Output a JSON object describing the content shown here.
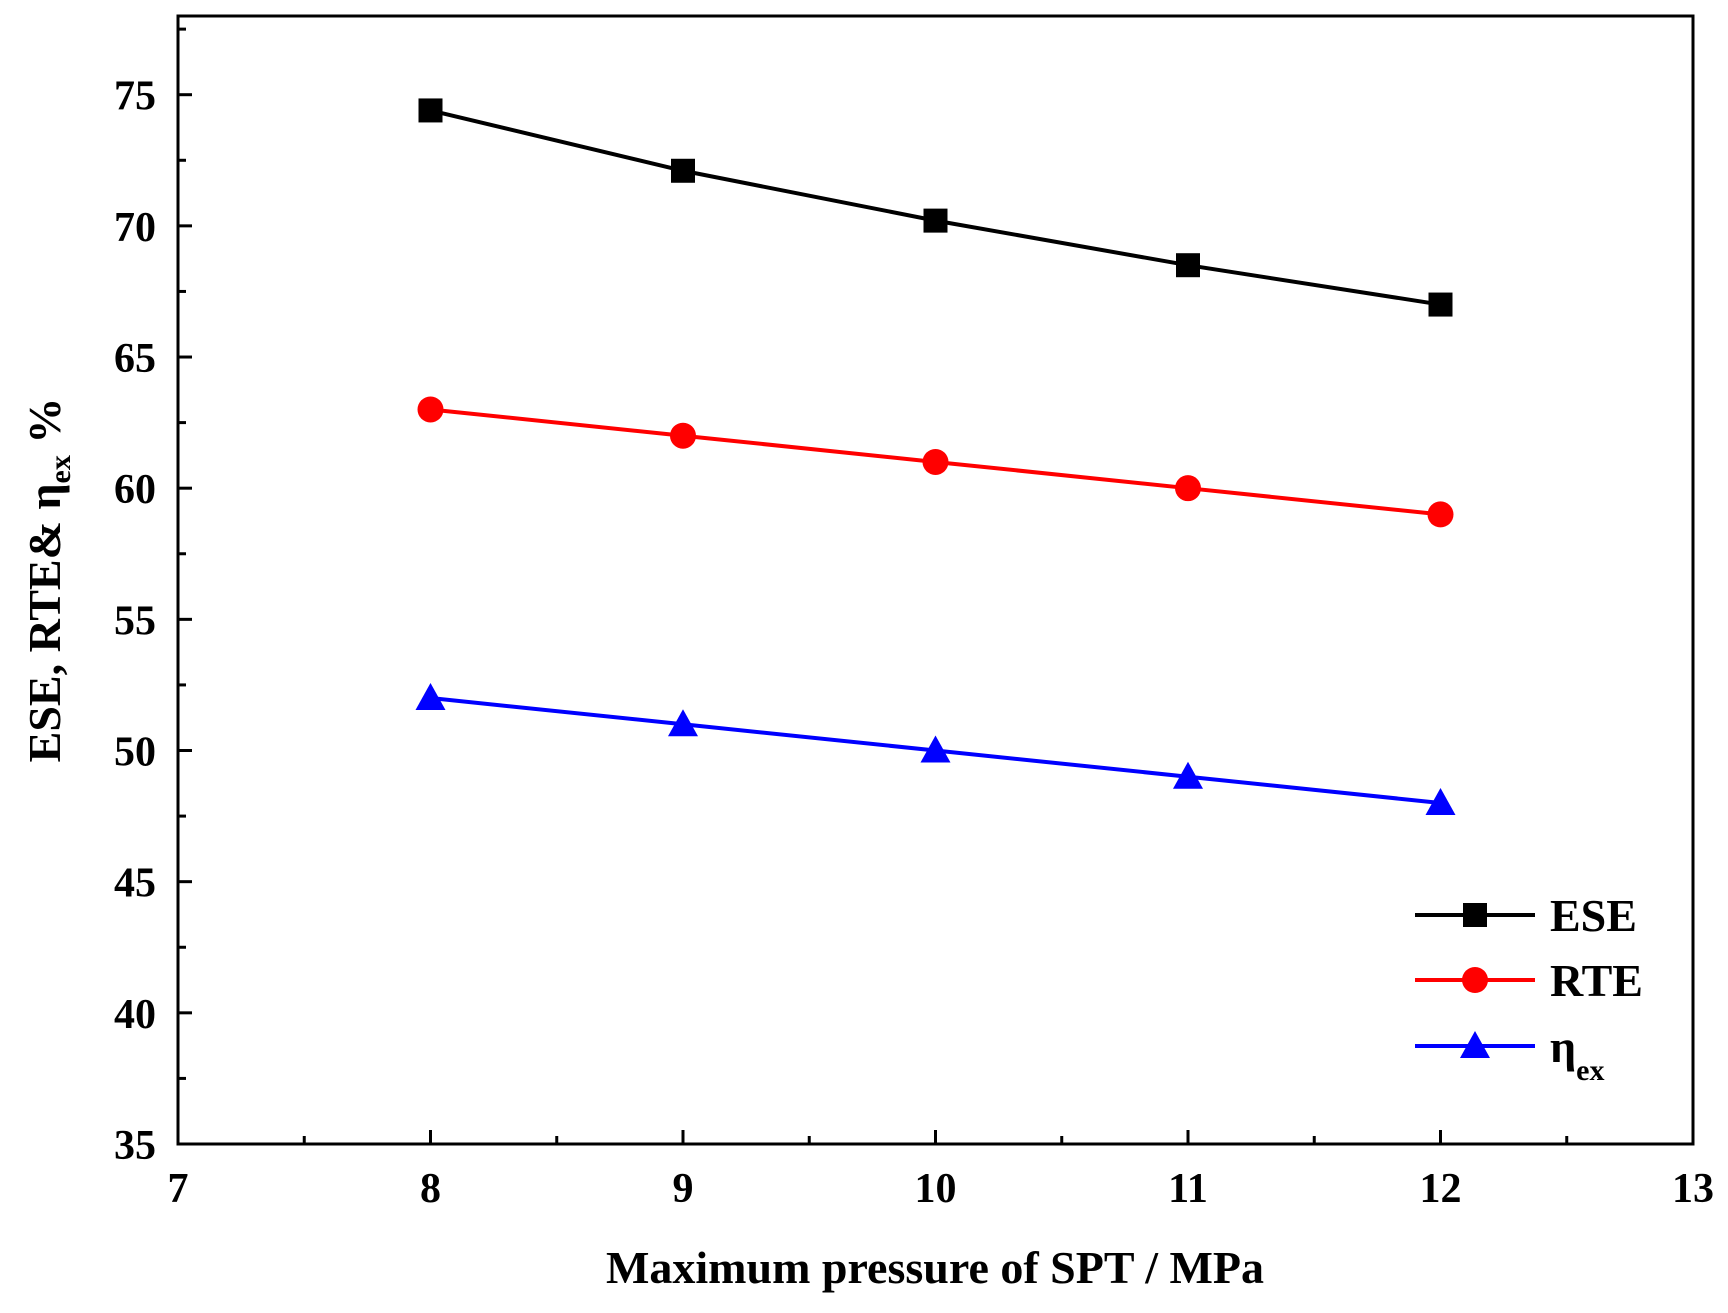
{
  "chart_data": {
    "type": "line",
    "x": [
      8,
      9,
      10,
      11,
      12
    ],
    "series": [
      {
        "name": "ESE",
        "legend_main": "ESE",
        "legend_sub": "",
        "values": [
          74.4,
          72.1,
          70.2,
          68.5,
          67.0
        ],
        "color": "#000000",
        "marker": "square"
      },
      {
        "name": "RTE",
        "legend_main": "RTE",
        "legend_sub": "",
        "values": [
          63.0,
          62.0,
          61.0,
          60.0,
          59.0
        ],
        "color": "#ff0000",
        "marker": "circle"
      },
      {
        "name": "ηex",
        "legend_main": "η",
        "legend_sub": "ex",
        "values": [
          52.0,
          51.0,
          50.0,
          49.0,
          48.0
        ],
        "color": "#0000ff",
        "marker": "triangle"
      }
    ],
    "xlabel": "Maximum pressure of SPT / MPa",
    "ylabel": {
      "main": "ESE, RTE& η",
      "sub": "ex",
      "unit": " %"
    },
    "xlim": [
      7,
      13
    ],
    "ylim": [
      35,
      78
    ],
    "xticks": [
      7,
      8,
      9,
      10,
      11,
      12,
      13
    ],
    "yticks": [
      35,
      40,
      45,
      50,
      55,
      60,
      65,
      70,
      75
    ],
    "grid": false,
    "legend_position": "bottom-right"
  }
}
